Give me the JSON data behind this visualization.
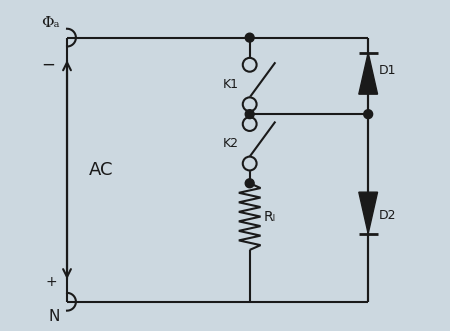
{
  "bg_color": "#ccd8e0",
  "line_color": "#1a1a1a",
  "phi_A_label": "Φₐ",
  "minus_label": "−",
  "plus_label": "+",
  "N_label": "N",
  "AC_label": "AC",
  "K1_label": "K1",
  "K2_label": "K2",
  "D1_label": "D1",
  "D2_label": "D2",
  "RL_label": "Rₗ"
}
